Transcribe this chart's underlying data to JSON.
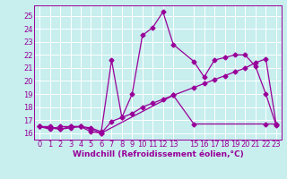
{
  "xlabel": "Windchill (Refroidissement éolien,°C)",
  "bg_color": "#c8eeee",
  "line_color": "#990099",
  "grid_color": "#b0d8d8",
  "ylim": [
    15.5,
    25.8
  ],
  "xlim": [
    -0.5,
    23.5
  ],
  "yticks": [
    16,
    17,
    18,
    19,
    20,
    21,
    22,
    23,
    24,
    25
  ],
  "xticks": [
    0,
    1,
    2,
    3,
    4,
    5,
    6,
    7,
    8,
    9,
    10,
    11,
    12,
    13,
    15,
    16,
    17,
    18,
    19,
    20,
    21,
    22,
    23
  ],
  "xtick_labels": [
    "0",
    "1",
    "2",
    "3",
    "4",
    "5",
    "6",
    "7",
    "8",
    "9",
    "10",
    "11",
    "12",
    "13",
    "15",
    "16",
    "17",
    "18",
    "19",
    "20",
    "21",
    "22",
    "23"
  ],
  "line1_x": [
    0,
    1,
    2,
    3,
    4,
    5,
    6,
    7,
    8,
    9,
    10,
    11,
    12,
    13,
    15,
    16,
    17,
    18,
    19,
    20,
    21,
    22,
    23
  ],
  "line1_y": [
    16.5,
    16.5,
    16.3,
    16.4,
    16.5,
    16.4,
    16.1,
    21.6,
    17.2,
    19.0,
    23.5,
    24.1,
    25.3,
    22.8,
    21.5,
    20.3,
    21.6,
    21.8,
    22.0,
    22.0,
    21.1,
    19.0,
    16.6
  ],
  "line2_x": [
    0,
    1,
    2,
    3,
    4,
    5,
    6,
    7,
    8,
    9,
    10,
    11,
    12,
    13,
    15,
    16,
    17,
    18,
    19,
    20,
    21,
    22,
    23
  ],
  "line2_y": [
    16.5,
    16.4,
    16.3,
    16.5,
    16.5,
    16.1,
    16.0,
    16.9,
    17.2,
    17.5,
    18.0,
    18.3,
    18.6,
    18.9,
    19.5,
    19.8,
    20.1,
    20.4,
    20.7,
    21.0,
    21.4,
    21.7,
    16.7
  ],
  "line3_x": [
    0,
    1,
    2,
    3,
    4,
    5,
    6,
    13,
    15,
    22,
    23
  ],
  "line3_y": [
    16.5,
    16.3,
    16.5,
    16.5,
    16.5,
    16.3,
    16.0,
    18.9,
    16.7,
    16.7,
    16.7
  ],
  "marker": "D",
  "markersize": 2.5,
  "linewidth": 0.9,
  "xlabel_fontsize": 6.5,
  "tick_fontsize": 6.0
}
